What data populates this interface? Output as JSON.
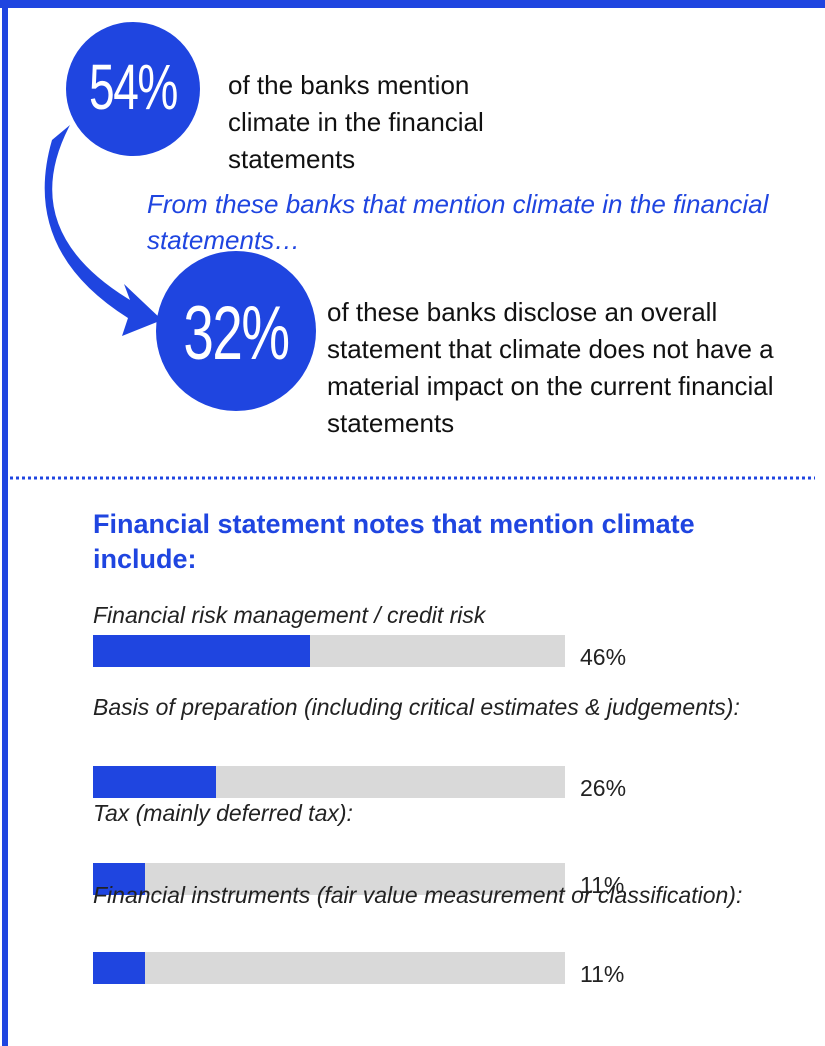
{
  "stats": [
    {
      "figure": "54%",
      "text": "of the banks mention climate in the financial statements"
    },
    {
      "figure": "32%",
      "text": "of these banks disclose an overall statement that climate does not have a material impact on the current financial statements"
    }
  ],
  "transition": "From these banks that mention climate in the financial statements…",
  "chart_data": {
    "type": "bar",
    "orientation": "horizontal",
    "title": "Financial statement notes that mention climate include:",
    "categories": [
      "Financial risk management / credit risk",
      "Basis of preparation (including critical estimates & judgements):",
      "Tax (mainly deferred tax):",
      "Financial instruments (fair value measurement or classification):"
    ],
    "values": [
      46,
      26,
      11,
      11
    ],
    "value_labels": [
      "46%",
      "26%",
      "11%",
      "11%"
    ],
    "color": "#1f45e0",
    "track_color": "#d9d9d9",
    "xlim": [
      0,
      100
    ]
  }
}
